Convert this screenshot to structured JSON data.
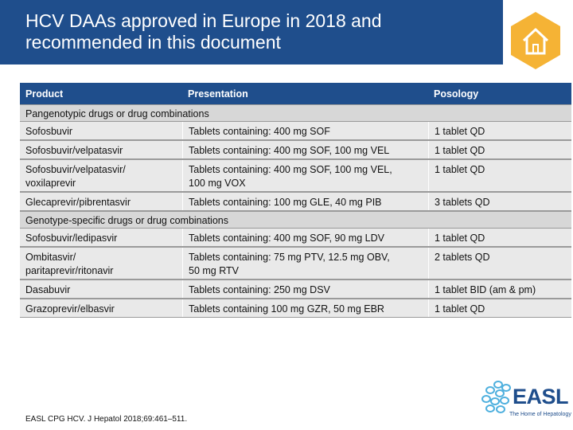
{
  "header": {
    "title_line1": "HCV DAAs approved in Europe in 2018 and",
    "title_line2": "recommended in this document",
    "band_color": "#1f4e8c",
    "badge_color": "#f5b335"
  },
  "table": {
    "columns": [
      "Product",
      "Presentation",
      "Posology"
    ],
    "sections": [
      {
        "title": "Pangenotypic drugs or drug combinations",
        "rows": [
          {
            "product": [
              "Sofosbuvir"
            ],
            "presentation": [
              "Tablets containing: 400 mg SOF"
            ],
            "posology": "1 tablet QD"
          },
          {
            "product": [
              "Sofosbuvir/velpatasvir"
            ],
            "presentation": [
              "Tablets containing: 400 mg SOF, 100 mg VEL"
            ],
            "posology": "1 tablet QD"
          },
          {
            "product": [
              "Sofosbuvir/velpatasvir/",
              "voxilaprevir"
            ],
            "presentation": [
              "Tablets containing: 400 mg SOF, 100 mg VEL,",
              "100 mg VOX"
            ],
            "posology": "1 tablet QD"
          },
          {
            "product": [
              "Glecaprevir/pibrentasvir"
            ],
            "presentation": [
              "Tablets containing: 100 mg GLE, 40 mg PIB"
            ],
            "posology": "3 tablets QD"
          }
        ]
      },
      {
        "title": "Genotype-specific drugs or drug combinations",
        "rows": [
          {
            "product": [
              "Sofosbuvir/ledipasvir"
            ],
            "presentation": [
              "Tablets containing: 400 mg SOF, 90 mg LDV"
            ],
            "posology": "1 tablet QD"
          },
          {
            "product": [
              "Ombitasvir/",
              "paritaprevir/ritonavir"
            ],
            "presentation": [
              "Tablets containing: 75 mg PTV, 12.5 mg OBV,",
              "50 mg RTV"
            ],
            "posology": "2 tablets QD"
          },
          {
            "product": [
              "Dasabuvir"
            ],
            "presentation": [
              "Tablets containing: 250 mg DSV"
            ],
            "posology": "1 tablet BID (am & pm)"
          },
          {
            "product": [
              "Grazoprevir/elbasvir"
            ],
            "presentation": [
              "Tablets containing 100 mg GZR, 50 mg EBR"
            ],
            "posology": "1 tablet QD"
          }
        ]
      }
    ]
  },
  "footer": {
    "citation": "EASL CPG HCV. J Hepatol 2018;69:461–511."
  },
  "logo": {
    "text": "EASL",
    "tagline": "The Home of Hepatology",
    "color": "#1f4e8c",
    "dot_color": "#4fb0de"
  }
}
